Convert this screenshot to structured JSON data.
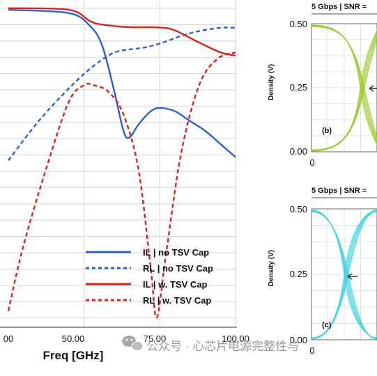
{
  "chart_data": [
    {
      "type": "line",
      "xlabel": "Freq [GHz]",
      "xlim": [
        25,
        100
      ],
      "x_ticks": [
        "00",
        "50.00",
        "75.00",
        "100.00"
      ],
      "grid": true,
      "legend_position": "bottom-right",
      "series": [
        {
          "name": "IL | no TSV Cap",
          "color": "#2a5fd6",
          "style": "solid",
          "points": [
            [
              25,
              0.97
            ],
            [
              45,
              0.96
            ],
            [
              52,
              0.92
            ],
            [
              56,
              0.86
            ],
            [
              60,
              0.72
            ],
            [
              63,
              0.6
            ],
            [
              65,
              0.58
            ],
            [
              68,
              0.62
            ],
            [
              72,
              0.66
            ],
            [
              75,
              0.67
            ],
            [
              80,
              0.66
            ],
            [
              85,
              0.63
            ],
            [
              90,
              0.6
            ],
            [
              95,
              0.56
            ],
            [
              100,
              0.52
            ]
          ]
        },
        {
          "name": "RL | no TSV Cap",
          "color": "#2a5fd6",
          "style": "dashed",
          "points": [
            [
              25,
              0.51
            ],
            [
              35,
              0.63
            ],
            [
              45,
              0.73
            ],
            [
              52,
              0.79
            ],
            [
              58,
              0.83
            ],
            [
              62,
              0.845
            ],
            [
              70,
              0.855
            ],
            [
              76,
              0.87
            ],
            [
              82,
              0.89
            ],
            [
              88,
              0.905
            ],
            [
              95,
              0.915
            ],
            [
              100,
              0.915
            ]
          ]
        },
        {
          "name": "IL | w. TSV Cap",
          "color": "#e0201b",
          "style": "solid",
          "points": [
            [
              25,
              0.975
            ],
            [
              45,
              0.97
            ],
            [
              52,
              0.935
            ],
            [
              56,
              0.925
            ],
            [
              65,
              0.917
            ],
            [
              75,
              0.916
            ],
            [
              80,
              0.907
            ],
            [
              88,
              0.87
            ],
            [
              95,
              0.84
            ],
            [
              100,
              0.83
            ]
          ]
        },
        {
          "name": "RL | w. TSV Cap",
          "color": "#e0201b",
          "style": "dashed",
          "points": [
            [
              25,
              0.05
            ],
            [
              30,
              0.25
            ],
            [
              38,
              0.5
            ],
            [
              45,
              0.69
            ],
            [
              50,
              0.74
            ],
            [
              53,
              0.74
            ],
            [
              58,
              0.72
            ],
            [
              63,
              0.65
            ],
            [
              68,
              0.48
            ],
            [
              72,
              0.18
            ],
            [
              74,
              0.03
            ],
            [
              77,
              0.22
            ],
            [
              82,
              0.53
            ],
            [
              88,
              0.74
            ],
            [
              94,
              0.82
            ],
            [
              100,
              0.84
            ]
          ]
        }
      ]
    },
    {
      "type": "line",
      "title": "5 Gbps | SNR =",
      "panel_label": "(b)",
      "ylabel": "Density (V)",
      "y_ticks": [
        "0.50",
        "0.25",
        "0.00"
      ],
      "x_ticks": [
        "0"
      ],
      "ylim": [
        0,
        0.5
      ],
      "grid": true,
      "trace_color": "#9acd32"
    },
    {
      "type": "line",
      "title": "5 Gbps | SNR =",
      "panel_label": "(c)",
      "ylabel": "Density (V)",
      "y_ticks": [
        "0.50",
        "0.25",
        "0.00"
      ],
      "x_ticks": [
        "0"
      ],
      "ylim": [
        0,
        0.5
      ],
      "grid": true,
      "trace_color": "#3fd3e0"
    }
  ],
  "watermark": "公众号 · 心芯片电源完整性与"
}
